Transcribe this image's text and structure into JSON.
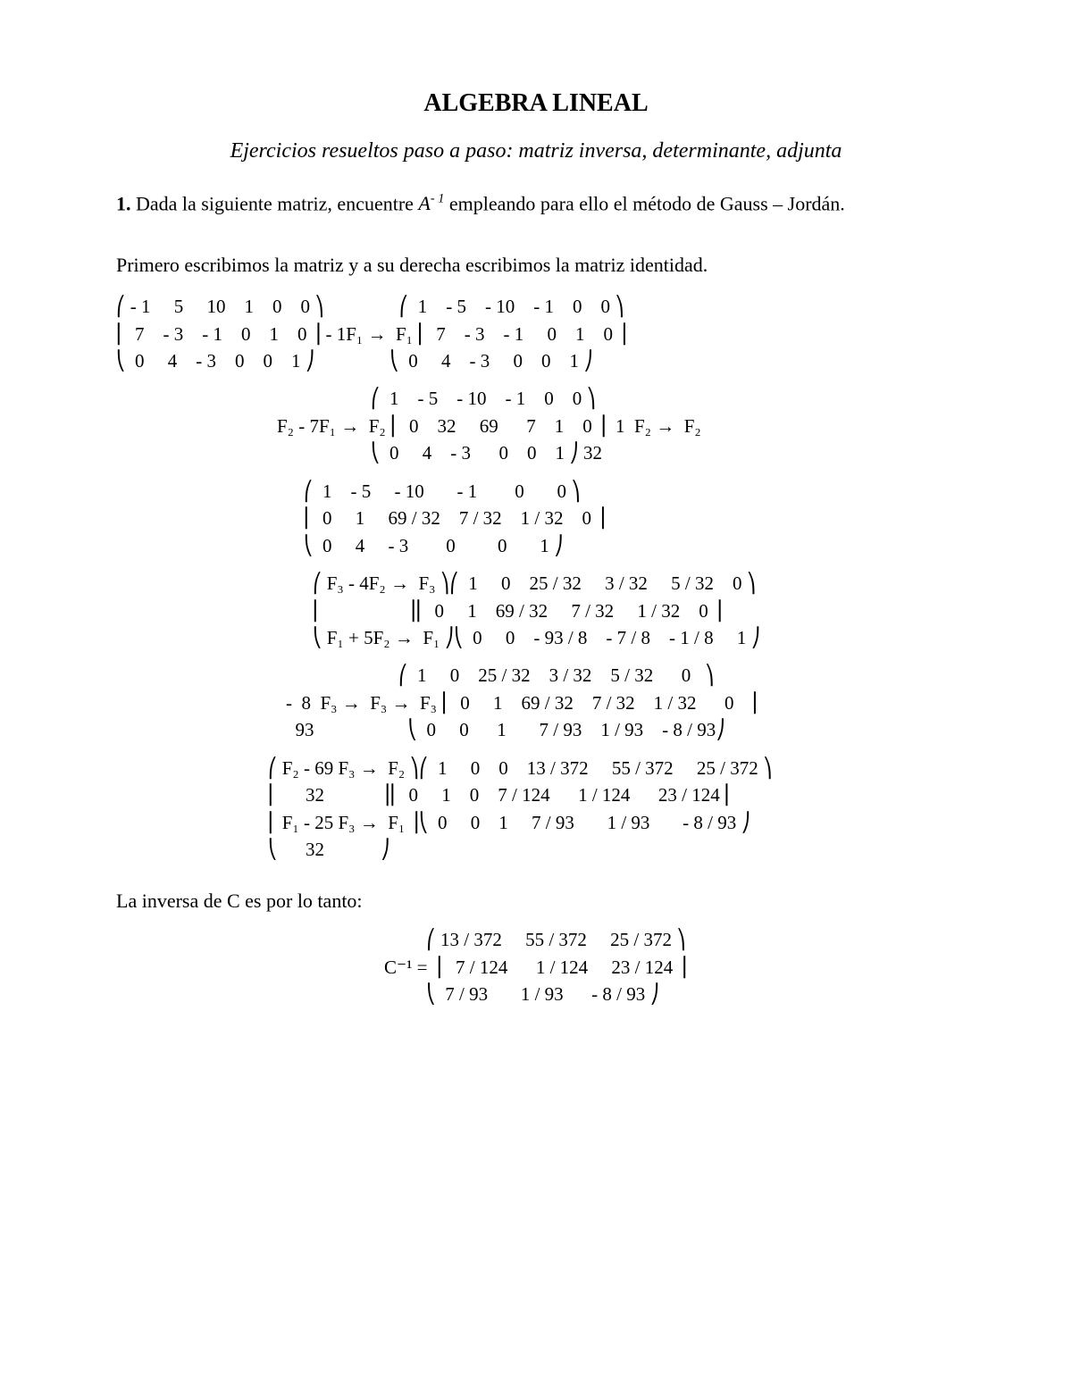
{
  "title": "ALGEBRA LINEAL",
  "subtitle": "Ejercicios resueltos paso a paso: matriz inversa, determinante, adjunta",
  "exercise_number": "1.",
  "prompt_before": " Dada la siguiente matriz, encuentre ",
  "a_inv_symbol": "A",
  "a_inv_exp": "- 1",
  "prompt_after": "  empleando para ello el método de Gauss – Jordán.",
  "line_primero": "Primero escribimos la matriz y a su derecha escribimos la matriz identidad.",
  "step1": "⎛ - 1     5     10    1    0    0 ⎞                ⎛  1    - 5    - 10    - 1    0    0 ⎞\n⎜  7    - 3    - 1    0    1    0 ⎟ - 1F₁ →  F₁ ⎜  7    - 3    - 1     0    1    0 ⎟\n⎝  0     4    - 3    0    0    1 ⎠                ⎝  0     4    - 3     0    0    1 ⎠",
  "step2": "                    ⎛  1    - 5    - 10    - 1    0    0 ⎞\nF₂ - 7F₁ →  F₂ ⎜  0    32     69      7    1    0 ⎟  1  F₂ →  F₂\n                    ⎝  0     4    - 3      0    0    1 ⎠ 32",
  "step3": "⎛  1    - 5     - 10       - 1        0       0 ⎞\n⎜  0     1     69 / 32    7 / 32    1 / 32    0 ⎟\n⎝  0     4     - 3        0         0       1 ⎠",
  "step4": "⎛ F₃ - 4F₂ →  F₃ ⎞⎛  1     0    25 / 32     3 / 32     5 / 32    0 ⎞\n⎜                  ⎟⎜  0     1    69 / 32     7 / 32     1 / 32    0 ⎟\n⎝ F₁ + 5F₂ →  F₁ ⎠⎝  0     0    - 93 / 8    - 7 / 8    - 1 / 8     1 ⎠",
  "step5": "                        ⎛  1     0    25 / 32    3 / 32    5 / 32      0   ⎞\n-  8  F₃ →  F₃ →  F₃ ⎜  0     1    69 / 32    7 / 32    1 / 32      0   ⎟\n  93                    ⎝  0     0      1       7 / 93    1 / 93    - 8 / 93⎠",
  "step6": "⎛ F₂ - 69 F₃ →  F₂ ⎞⎛  1     0    0    13 / 372     55 / 372     25 / 372 ⎞\n⎜      32            ⎟⎜  0     1    0    7 / 124      1 / 124      23 / 124⎟\n⎜ F₁ - 25 F₃ →  F₁ ⎟⎝  0     0    1     7 / 93       1 / 93       - 8 / 93 ⎠\n⎝      32            ⎠",
  "conclusion": "La inversa de C es por lo tanto:",
  "result": "         ⎛ 13 / 372     55 / 372     25 / 372 ⎞\nC⁻¹ =  ⎜  7 / 124      1 / 124     23 / 124 ⎟\n         ⎝  7 / 93       1 / 93      - 8 / 93 ⎠",
  "style": {
    "background_color": "#ffffff",
    "text_color": "#000000",
    "title_fontsize": 28,
    "subtitle_fontsize": 24,
    "body_fontsize": 22,
    "math_fontsize": 21,
    "font_family": "Times New Roman"
  }
}
